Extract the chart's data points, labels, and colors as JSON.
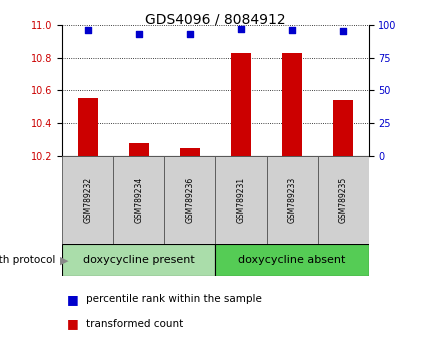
{
  "title": "GDS4096 / 8084912",
  "samples": [
    "GSM789232",
    "GSM789234",
    "GSM789236",
    "GSM789231",
    "GSM789233",
    "GSM789235"
  ],
  "bar_values": [
    10.55,
    10.28,
    10.25,
    10.83,
    10.83,
    10.54
  ],
  "percentile_values": [
    96,
    93,
    93,
    97,
    96,
    95
  ],
  "bar_baseline": 10.2,
  "ylim_left": [
    10.2,
    11.0
  ],
  "ylim_right": [
    0,
    100
  ],
  "yticks_left": [
    10.2,
    10.4,
    10.6,
    10.8,
    11.0
  ],
  "yticks_right": [
    0,
    25,
    50,
    75,
    100
  ],
  "bar_color": "#cc0000",
  "percentile_color": "#0000cc",
  "group1_label": "doxycycline present",
  "group2_label": "doxycycline absent",
  "group_protocol_label": "growth protocol",
  "group1_color": "#aaddaa",
  "group2_color": "#55cc55",
  "legend_bar_label": "transformed count",
  "legend_pct_label": "percentile rank within the sample",
  "bar_width": 0.4,
  "title_fontsize": 10,
  "tick_fontsize": 7,
  "sample_fontsize": 5.5,
  "group_fontsize": 8,
  "legend_fontsize": 7.5
}
